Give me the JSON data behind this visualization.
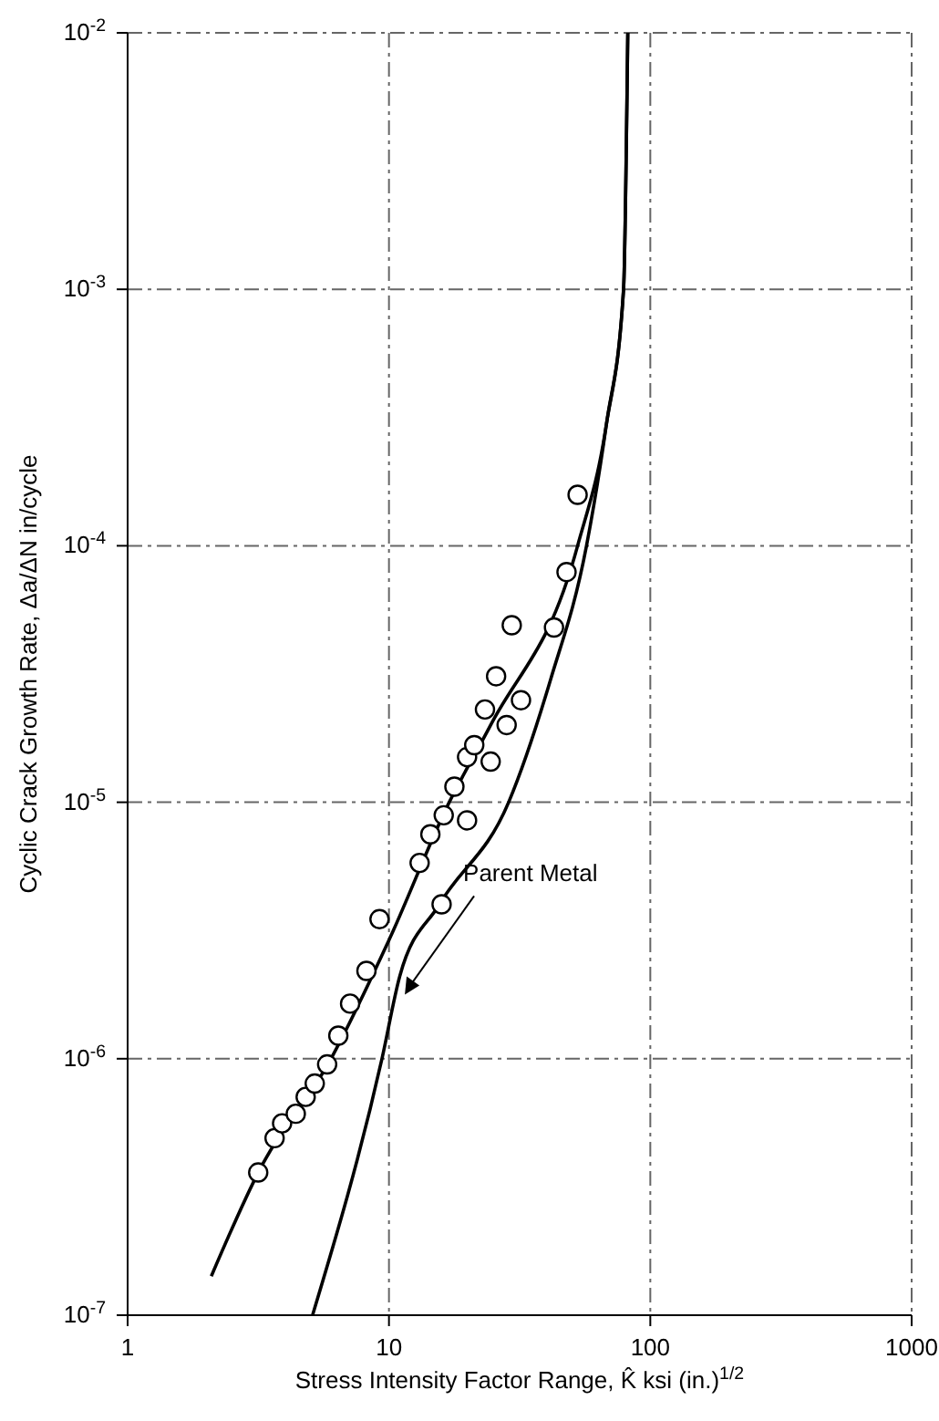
{
  "chart_data": {
    "type": "scatter",
    "xlabel": "Stress  Intensity Factor Range,  K̂ ksi (in.)$^{1/2}$",
    "ylabel": "Cyclic Crack Growth Rate,  Δa/ΔN in/cycle",
    "log": "xy",
    "grid": true,
    "xlim": [
      1,
      1000
    ],
    "xticks": [
      1,
      10,
      100,
      1000
    ],
    "ylim": [
      1e-07,
      0.01
    ],
    "yticks": [
      {
        "value": 1e-07,
        "label": "10$^{-7}$"
      },
      {
        "value": 1e-06,
        "label": "10$^{-6}$"
      },
      {
        "value": 1e-05,
        "label": "10$^{-5}$"
      },
      {
        "value": 0.0001,
        "label": "10$^{-4}$"
      },
      {
        "value": 0.001,
        "label": "10$^{-3}$"
      },
      {
        "value": 0.01,
        "label": "10$^{-2}$"
      }
    ],
    "series": [
      {
        "color": "#000000",
        "marker": "circle",
        "x": [
          3.16,
          3.65,
          3.9,
          4.4,
          4.8,
          5.2,
          5.8,
          6.4,
          7.1,
          8.2,
          9.2,
          15.9,
          13.1,
          14.4,
          16.2,
          19.9,
          17.8,
          19.9,
          21.2,
          24.5,
          23.3,
          28.2,
          32,
          25.7,
          29.5,
          42.8,
          47.8,
          52.7
        ],
        "values": [
          3.6e-07,
          4.9e-07,
          5.6e-07,
          6.1e-07,
          7.1e-07,
          8e-07,
          9.5e-07,
          1.23e-06,
          1.64e-06,
          2.2e-06,
          3.5e-06,
          4e-06,
          5.8e-06,
          7.5e-06,
          8.9e-06,
          8.5e-06,
          1.15e-05,
          1.5e-05,
          1.67e-05,
          1.44e-05,
          2.3e-05,
          2e-05,
          2.5e-05,
          3.1e-05,
          4.9e-05,
          4.8e-05,
          7.9e-05,
          0.000158
        ]
      },
      {
        "type": "line",
        "color": "#000000",
        "marker": "none",
        "line_style": "solid",
        "x": [
          2.09,
          3.16,
          6,
          10,
          17,
          24.5,
          52.7,
          68,
          79,
          82
        ],
        "values": [
          1.42e-07,
          3.6e-07,
          1e-06,
          2.9e-06,
          1e-05,
          2e-05,
          0.0001,
          0.0003,
          0.001,
          0.01
        ]
      },
      {
        "type": "line",
        "color": "#000000",
        "marker": "none",
        "line_style": "solid",
        "x": [
          5.1,
          9.4,
          11,
          15.6,
          28.7,
          41.5,
          57,
          68,
          79,
          82
        ],
        "values": [
          1e-07,
          1e-06,
          2.1e-06,
          4e-06,
          1e-05,
          3e-05,
          0.0001,
          0.0003,
          0.001,
          0.01
        ]
      }
    ],
    "annotations": [
      {
        "text": "Parent Metal",
        "x": 11.5,
        "y": 1.78e-06
      }
    ]
  }
}
